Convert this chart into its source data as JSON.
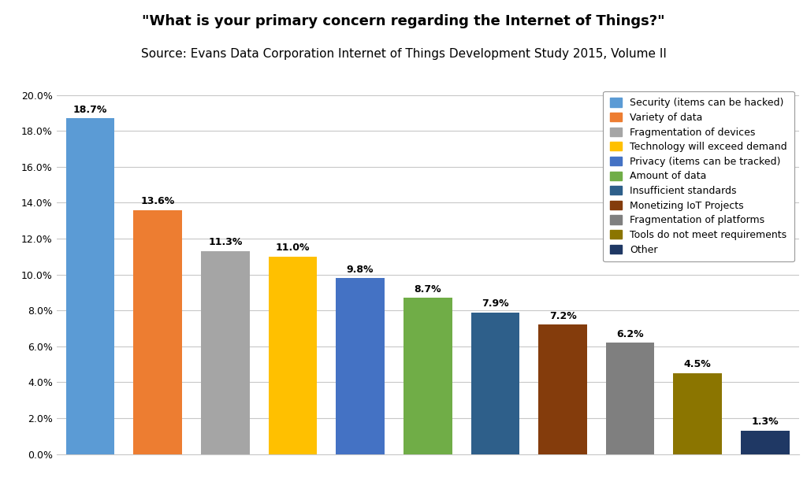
{
  "title": "\"What is your primary concern regarding the Internet of Things?\"",
  "subtitle": "Source: Evans Data Corporation Internet of Things Development Study 2015, Volume II",
  "categories": [
    "Security (items can be hacked)",
    "Variety of data",
    "Fragmentation of devices",
    "Technology will exceed demand",
    "Privacy (items can be tracked)",
    "Amount of data",
    "Insufficient standards",
    "Monetizing IoT Projects",
    "Fragmentation of platforms",
    "Tools do not meet requirements",
    "Other"
  ],
  "values": [
    18.7,
    13.6,
    11.3,
    11.0,
    9.8,
    8.7,
    7.9,
    7.2,
    6.2,
    4.5,
    1.3
  ],
  "bar_colors": [
    "#5B9BD5",
    "#ED7D31",
    "#A5A5A5",
    "#FFC000",
    "#4472C4",
    "#70AD47",
    "#2E5F8A",
    "#843C0C",
    "#7F7F7F",
    "#8B7500",
    "#1F3864"
  ],
  "ylim": [
    0,
    20.5
  ],
  "yticks": [
    0.0,
    2.0,
    4.0,
    6.0,
    8.0,
    10.0,
    12.0,
    14.0,
    16.0,
    18.0,
    20.0
  ],
  "ytick_labels": [
    "0.0%",
    "2.0%",
    "4.0%",
    "6.0%",
    "8.0%",
    "10.0%",
    "12.0%",
    "14.0%",
    "16.0%",
    "18.0%",
    "20.0%"
  ],
  "title_fontsize": 13,
  "subtitle_fontsize": 11,
  "label_fontsize": 9,
  "legend_fontsize": 9,
  "background_color": "#FFFFFF",
  "grid_color": "#C8C8C8"
}
